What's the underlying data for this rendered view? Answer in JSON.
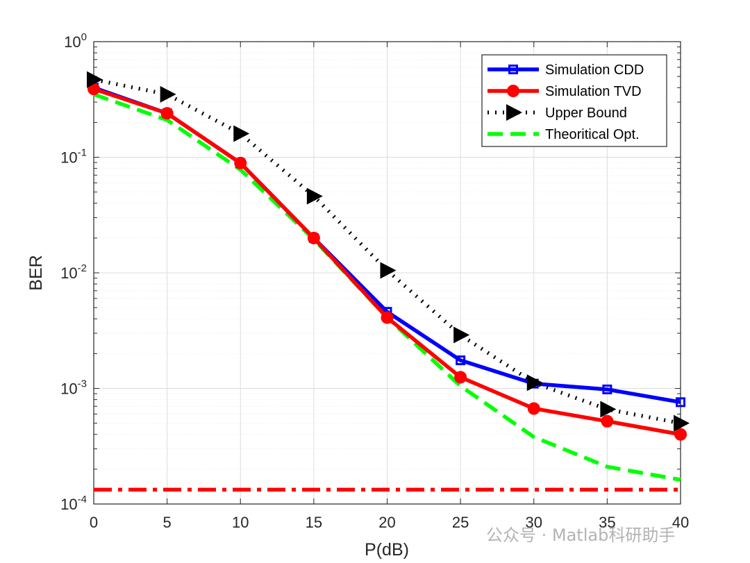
{
  "chart_data": {
    "type": "line",
    "title": "",
    "xlabel": "P(dB)",
    "ylabel": "BER",
    "yscale": "log",
    "xlim": [
      0,
      40
    ],
    "ylim": [
      0.0001,
      1
    ],
    "grid": true,
    "x_ticks": [
      0,
      5,
      10,
      15,
      20,
      25,
      30,
      35,
      40
    ],
    "y_ticks": [
      {
        "value": 1,
        "base": "10",
        "exp": "0"
      },
      {
        "value": 0.1,
        "base": "10",
        "exp": "-1"
      },
      {
        "value": 0.01,
        "base": "10",
        "exp": "-2"
      },
      {
        "value": 0.001,
        "base": "10",
        "exp": "-3"
      },
      {
        "value": 0.0001,
        "base": "10",
        "exp": "-4"
      }
    ],
    "x": [
      0,
      5,
      10,
      15,
      20,
      25,
      30,
      35,
      40
    ],
    "series": [
      {
        "name": "Simulation CDD",
        "color": "#0000ff",
        "style": "solid",
        "marker": "square",
        "values": [
          0.4,
          0.24,
          0.089,
          0.02,
          0.0046,
          0.00175,
          0.0011,
          0.00098,
          0.00076
        ]
      },
      {
        "name": "Simulation TVD",
        "color": "#ff0000",
        "style": "solid",
        "marker": "circle",
        "values": [
          0.39,
          0.24,
          0.089,
          0.02,
          0.0041,
          0.00125,
          0.00067,
          0.00052,
          0.0004
        ]
      },
      {
        "name": "Upper Bound",
        "color": "#000000",
        "style": "dotted",
        "marker": "triangle-right",
        "values": [
          0.47,
          0.35,
          0.16,
          0.046,
          0.0105,
          0.0029,
          0.00112,
          0.00066,
          0.0005
        ]
      },
      {
        "name": "Theoritical Opt.",
        "color": "#00ff00",
        "style": "dashed",
        "marker": "none",
        "values": [
          0.35,
          0.21,
          0.078,
          0.0195,
          0.0041,
          0.00105,
          0.00038,
          0.00021,
          0.000162
        ]
      }
    ],
    "reference_line": {
      "value": 0.000133,
      "color": "#ff0000",
      "style": "dashdot"
    },
    "legend_position": "top-right"
  },
  "watermark": "公众号 · Matlab科研助手"
}
